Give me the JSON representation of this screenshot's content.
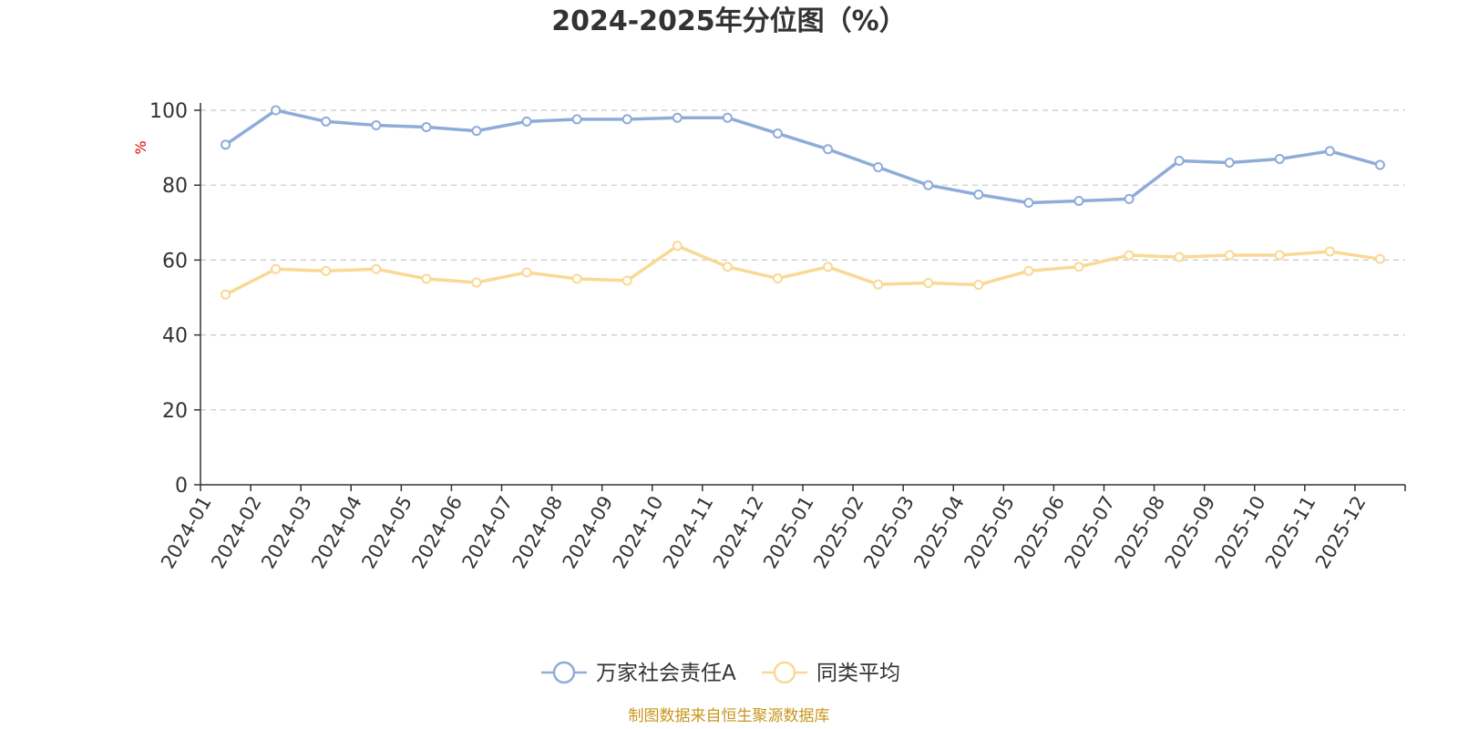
{
  "chart_data": {
    "type": "line",
    "title": "2024-2025年分位图（%）",
    "ylabel": "%",
    "xlabel": "",
    "ylim": [
      0,
      100
    ],
    "yticks": [
      0,
      20,
      40,
      60,
      80,
      100
    ],
    "grid": "horizontal-dashed",
    "legend_position": "bottom-center",
    "categories": [
      "2024-01",
      "2024-02",
      "2024-03",
      "2024-04",
      "2024-05",
      "2024-06",
      "2024-07",
      "2024-08",
      "2024-09",
      "2024-10",
      "2024-11",
      "2024-12",
      "2025-01",
      "2025-02",
      "2025-03",
      "2025-04",
      "2025-05",
      "2025-06",
      "2025-07",
      "2025-08",
      "2025-09",
      "2025-10",
      "2025-11",
      "2025-12"
    ],
    "series": [
      {
        "name": "万家社会责任A",
        "color": "#8eacd9",
        "values": [
          90.8,
          100,
          97,
          96,
          95.5,
          94.5,
          97,
          97.6,
          97.6,
          98,
          98,
          93.8,
          89.6,
          84.8,
          80,
          77.5,
          75.3,
          75.8,
          76.3,
          86.5,
          86,
          87,
          89.1,
          85.4
        ]
      },
      {
        "name": "同类平均",
        "color": "#f9d994",
        "values": [
          50.8,
          57.6,
          57.1,
          57.6,
          55,
          54,
          56.7,
          55,
          54.5,
          63.8,
          58.2,
          55.1,
          58.2,
          53.5,
          53.9,
          53.4,
          57.1,
          58.2,
          61.3,
          60.8,
          61.3,
          61.3,
          62.3,
          60.3
        ]
      }
    ],
    "source": "制图数据来自恒生聚源数据库"
  }
}
